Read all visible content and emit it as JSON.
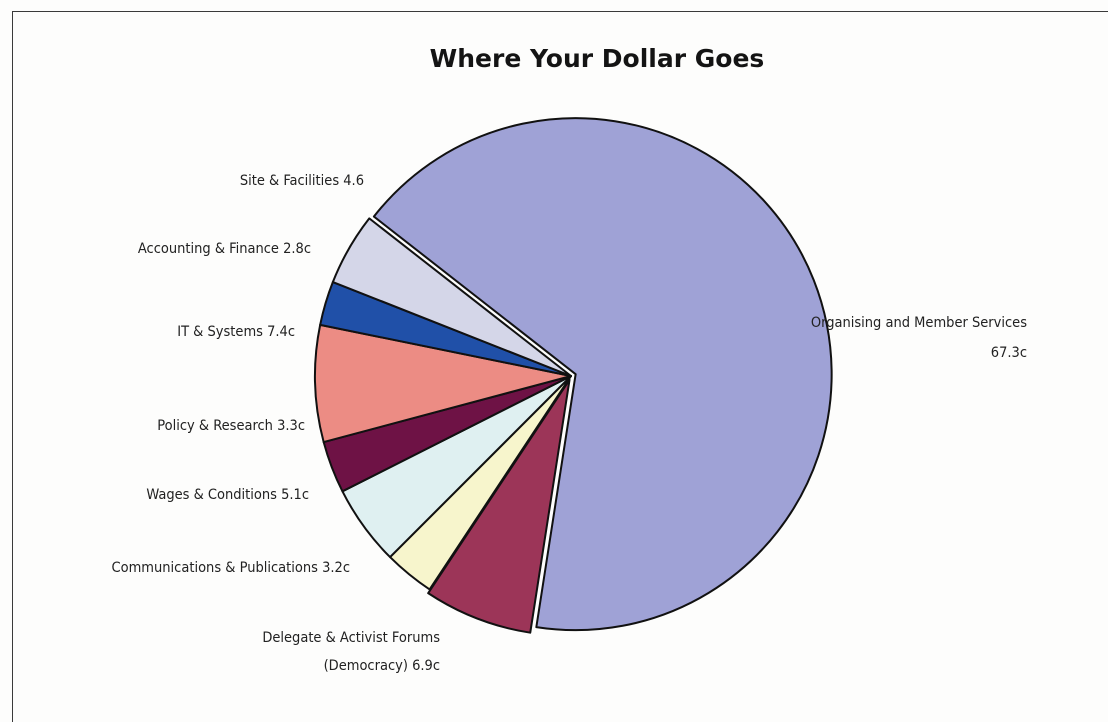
{
  "chart_data": {
    "type": "pie",
    "title": "Where Your Dollar Goes",
    "slices": [
      {
        "label": "Organising and Member Services",
        "value_label": "67.3c",
        "value": 67.3,
        "color": "#9fa2d6"
      },
      {
        "label": "Delegate & Activist Forums",
        "value_label": "(Democracy) 6.9c",
        "value": 6.9,
        "color": "#9c3558"
      },
      {
        "label": "Communications & Publications 3.2c",
        "value_label": "",
        "value": 3.2,
        "color": "#f7f5cc"
      },
      {
        "label": "Wages & Conditions 5.1c",
        "value_label": "",
        "value": 5.1,
        "color": "#dff0f1"
      },
      {
        "label": "Policy & Research 3.3c",
        "value_label": "",
        "value": 3.3,
        "color": "#6e1245"
      },
      {
        "label": "IT & Systems 7.4c",
        "value_label": "",
        "value": 7.4,
        "color": "#ec8c84"
      },
      {
        "label": "Accounting & Finance 2.8c",
        "value_label": "",
        "value": 2.8,
        "color": "#2050a8"
      },
      {
        "label": "Site & Facilities 4.6",
        "value_label": "",
        "value": 4.6,
        "color": "#d4d6e8"
      }
    ]
  }
}
